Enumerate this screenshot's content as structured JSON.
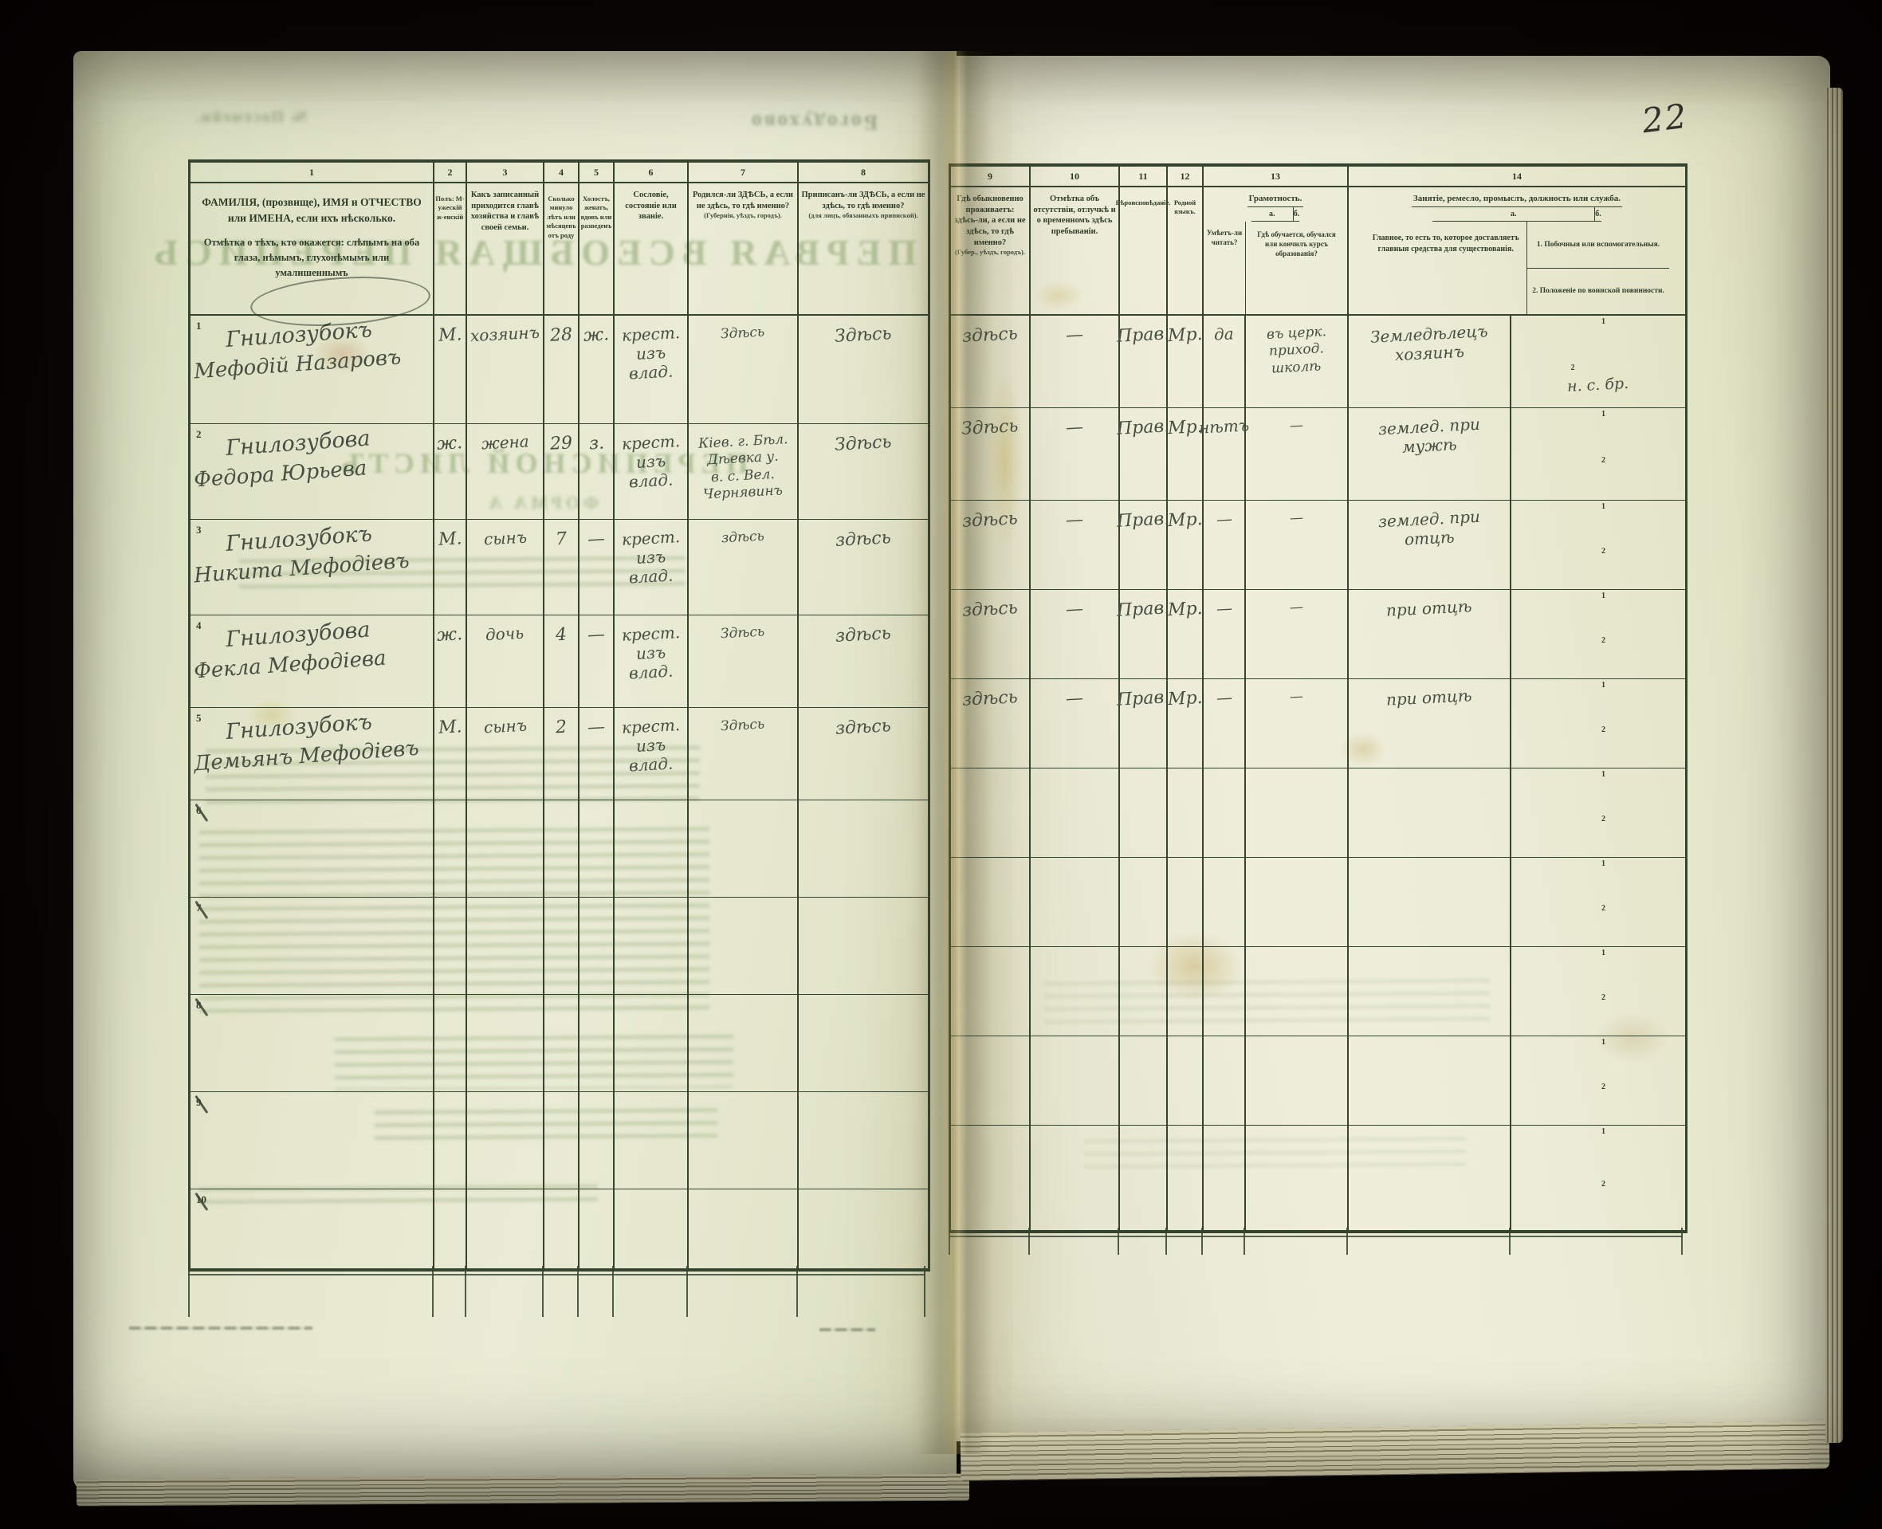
{
  "page": {
    "number": "22"
  },
  "colors": {
    "paper_left": "#e3e6cb",
    "paper_right": "#eaebd5",
    "print_ink": "#2c3824",
    "handwriting_ink": "#474f42",
    "ghost_green": "#7c9a64"
  },
  "ghosts": {
    "top_word": "Богодухово",
    "title": "ПЕРВАЯ ВСЕОБЩАЯ ПЕРЕПИСЬ",
    "subtitle": "ПЕРЕПИСНОЙ ЛИСТЪ",
    "form": "ФОРМА А",
    "corner": "№ Посемейн."
  },
  "left_table": {
    "col_numbers": [
      "1",
      "2",
      "3",
      "4",
      "5",
      "6",
      "7",
      "8"
    ],
    "headers": {
      "c1a": "ФАМИЛІЯ, (прозвище), ИМЯ и ОТЧЕСТВО или ИМЕНА, если ихъ нѣсколько.",
      "c1b": "Отмѣтка о тѣхъ, кто окажется: слѣпымъ на оба глаза, нѣмымъ, глухонѣмымъ или умалишеннымъ",
      "c2": "Полъ: М-ужескій ж-енскій",
      "c3": "Какъ записанный приходится главѣ хозяйства и главѣ своей семьи.",
      "c4": "Сколько минуло лѣтъ или мѣсяцевъ отъ роду",
      "c5": "Холостъ, женатъ, вдовъ или разведенъ",
      "c6": "Сословіе, состояніе или званіе.",
      "c7": "Родился-ли ЗДѢСЬ, а если не здѣсь, то гдѣ именно?",
      "c7_note": "(Губернія, уѣздъ, городъ).",
      "c8": "Приписанъ-ли ЗДѢСЬ, а если не здѣсь, то гдѣ именно?",
      "c8_note": "(для лицъ, обязанныхъ припиской)."
    },
    "rows": [
      {
        "num": "1",
        "struck": false,
        "name": [
          "Гнилозубокъ",
          "Мефодій Назаровъ"
        ],
        "cells": [
          [
            "М."
          ],
          [
            "хозяинъ"
          ],
          [
            "28"
          ],
          [
            "ж."
          ],
          [
            "крест.",
            "изъ",
            "влад."
          ],
          [
            "Здѣсь"
          ],
          [
            "Здѣсь"
          ]
        ]
      },
      {
        "num": "2",
        "struck": false,
        "name": [
          "Гнилозубова",
          "Федора Юрьева"
        ],
        "cells": [
          [
            "ж."
          ],
          [
            "жена"
          ],
          [
            "29"
          ],
          [
            "з."
          ],
          [
            "крест.",
            "изъ",
            "влад."
          ],
          [
            "Кіев. г. Бѣл.",
            "Дѣевка у.",
            "в. с. Вел.",
            "Чернявинъ"
          ],
          [
            "Здѣсь"
          ]
        ]
      },
      {
        "num": "3",
        "struck": false,
        "name": [
          "Гнилозубокъ",
          "Никита Мефодіевъ"
        ],
        "cells": [
          [
            "М."
          ],
          [
            "сынъ"
          ],
          [
            "7"
          ],
          [
            "—"
          ],
          [
            "крест.",
            "изъ",
            "влад."
          ],
          [
            "здѣсь"
          ],
          [
            "здѣсь"
          ]
        ]
      },
      {
        "num": "4",
        "struck": false,
        "name": [
          "Гнилозубова",
          "Фекла Мефодіева"
        ],
        "cells": [
          [
            "ж."
          ],
          [
            "дочь"
          ],
          [
            "4"
          ],
          [
            "—"
          ],
          [
            "крест.",
            "изъ",
            "влад."
          ],
          [
            "Здѣсь"
          ],
          [
            "здѣсь"
          ]
        ]
      },
      {
        "num": "5",
        "struck": false,
        "name": [
          "Гнилозубокъ",
          "Демьянъ Мефодіевъ"
        ],
        "cells": [
          [
            "М."
          ],
          [
            "сынъ"
          ],
          [
            "2"
          ],
          [
            "—"
          ],
          [
            "крест.",
            "изъ",
            "влад."
          ],
          [
            "Здѣсь"
          ],
          [
            "здѣсь"
          ]
        ]
      },
      {
        "num": "6",
        "struck": true,
        "name": [],
        "cells": [
          [],
          [],
          [],
          [],
          [],
          [],
          []
        ]
      },
      {
        "num": "7",
        "struck": true,
        "name": [],
        "cells": [
          [],
          [],
          [],
          [],
          [],
          [],
          []
        ]
      },
      {
        "num": "8",
        "struck": true,
        "name": [],
        "cells": [
          [],
          [],
          [],
          [],
          [],
          [],
          []
        ]
      },
      {
        "num": "9",
        "struck": true,
        "name": [],
        "cells": [
          [],
          [],
          [],
          [],
          [],
          [],
          []
        ]
      },
      {
        "num": "10",
        "struck": true,
        "name": [],
        "cells": [
          [],
          [],
          [],
          [],
          [],
          [],
          []
        ]
      }
    ]
  },
  "right_table": {
    "col_numbers": [
      "9",
      "10",
      "11",
      "12",
      "13",
      "14"
    ],
    "headers": {
      "c9": "Гдѣ обыкновенно проживаетъ: здѣсь-ли, а если не здѣсь, то гдѣ именно?",
      "c9_note": "(Губер., уѣздъ, городъ).",
      "c10": "Отмѣтка объ отсутствіи, отлучкѣ и о временномъ здѣсь пребываніи.",
      "c11": "Вѣроисповѣданіе.",
      "c12": "Родной языкъ.",
      "c13": "Грамотность.",
      "c13a_label": "а.",
      "c13b_label": "б.",
      "c13a": "Умѣетъ-ли читать?",
      "c13b": "Гдѣ обучается, обучался или кончилъ курсъ образованія?",
      "c14": "Занятіе, ремесло, промыслъ, должность или служба.",
      "c14a_label": "а.",
      "c14b_label": "б.",
      "c14a": "Главное, то есть то, которое доставляетъ главныя средства для существованія.",
      "c14b1": "1. Побочныя или вспомогательныя.",
      "c14b2": "2. Положеніе по воинской повинности."
    },
    "sub_labels": [
      "1",
      "2"
    ],
    "rows": [
      {
        "cells": [
          [
            "здѣсь"
          ],
          [
            "—"
          ],
          [
            "Прав."
          ],
          [
            "Мр."
          ],
          [
            "да"
          ],
          [
            "въ церк.",
            "приход.",
            "школѣ"
          ],
          [
            "Земледѣлецъ",
            "хозяинъ"
          ]
        ],
        "sub1": "",
        "sub2": "н. с. бр."
      },
      {
        "cells": [
          [
            "Здѣсь"
          ],
          [
            "—"
          ],
          [
            "Прав."
          ],
          [
            "Мр."
          ],
          [
            "нѣтъ"
          ],
          [
            "—"
          ],
          [
            "землед. при",
            "мужѣ"
          ]
        ],
        "sub1": "",
        "sub2": ""
      },
      {
        "cells": [
          [
            "здѣсь"
          ],
          [
            "—"
          ],
          [
            "Прав."
          ],
          [
            "Мр."
          ],
          [
            "—"
          ],
          [
            "—"
          ],
          [
            "землед. при",
            "отцѣ"
          ]
        ],
        "sub1": "",
        "sub2": ""
      },
      {
        "cells": [
          [
            "здѣсь"
          ],
          [
            "—"
          ],
          [
            "Прав."
          ],
          [
            "Мр."
          ],
          [
            "—"
          ],
          [
            "—"
          ],
          [
            "при отцѣ"
          ]
        ],
        "sub1": "",
        "sub2": ""
      },
      {
        "cells": [
          [
            "здѣсь"
          ],
          [
            "—"
          ],
          [
            "Прав."
          ],
          [
            "Мр."
          ],
          [
            "—"
          ],
          [
            "—"
          ],
          [
            "при отцѣ"
          ]
        ],
        "sub1": "",
        "sub2": ""
      },
      {
        "cells": [
          [],
          [],
          [],
          [],
          [],
          [],
          []
        ],
        "sub1": "",
        "sub2": ""
      },
      {
        "cells": [
          [],
          [],
          [],
          [],
          [],
          [],
          []
        ],
        "sub1": "",
        "sub2": ""
      },
      {
        "cells": [
          [],
          [],
          [],
          [],
          [],
          [],
          []
        ],
        "sub1": "",
        "sub2": ""
      },
      {
        "cells": [
          [],
          [],
          [],
          [],
          [],
          [],
          []
        ],
        "sub1": "",
        "sub2": ""
      },
      {
        "cells": [
          [],
          [],
          [],
          [],
          [],
          [],
          []
        ],
        "sub1": "",
        "sub2": ""
      }
    ]
  }
}
